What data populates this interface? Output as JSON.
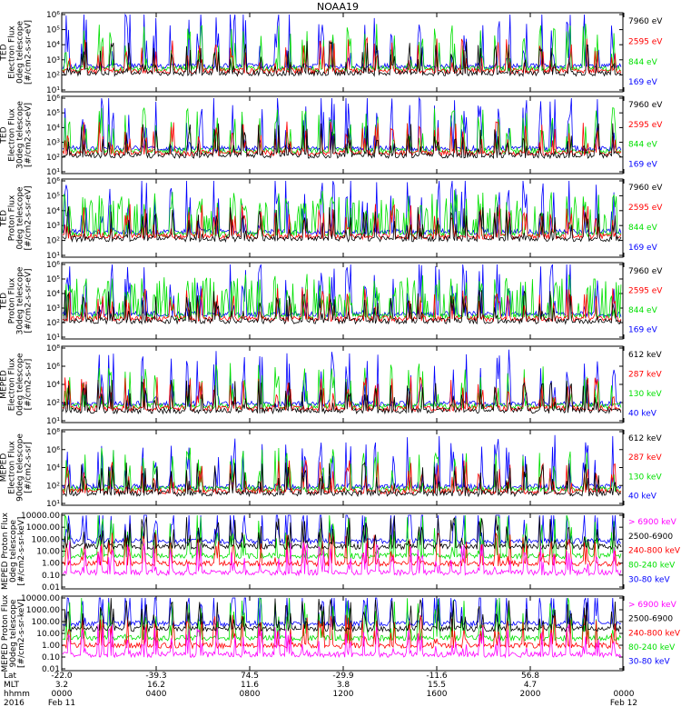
{
  "title": "NOAA19",
  "colors": {
    "black": "#000000",
    "red": "#ff0000",
    "green": "#00e000",
    "blue": "#0000ff",
    "magenta": "#ff00ff"
  },
  "chart_data": [
    {
      "type": "line",
      "scale": "log",
      "ylabel": [
        "TED",
        "Electron Flux",
        "0deg telescope",
        "[#/cm2-s-sr-eV]"
      ],
      "yticks": [
        "10¹",
        "10²",
        "10³",
        "10⁴",
        "10⁵",
        "10⁶"
      ],
      "legend": [
        {
          "name": "7960 eV",
          "color": "#000000"
        },
        {
          "name": "2595 eV",
          "color": "#ff0000"
        },
        {
          "name": "844 eV",
          "color": "#00e000"
        },
        {
          "name": "169 eV",
          "color": "#0000ff"
        }
      ]
    },
    {
      "type": "line",
      "scale": "log",
      "ylabel": [
        "TED",
        "Electron Flux",
        "30deg telescope",
        "[#/cm2-s-sr-eV]"
      ],
      "yticks": [
        "10¹",
        "10²",
        "10³",
        "10⁴",
        "10⁵",
        "10⁶"
      ],
      "legend": [
        {
          "name": "7960 eV",
          "color": "#000000"
        },
        {
          "name": "2595 eV",
          "color": "#ff0000"
        },
        {
          "name": "844 eV",
          "color": "#00e000"
        },
        {
          "name": "169 eV",
          "color": "#0000ff"
        }
      ]
    },
    {
      "type": "line",
      "scale": "log",
      "ylabel": [
        "TED",
        "Proton Flux",
        "0deg telescope",
        "[#/cm2-s-sr-eV]"
      ],
      "yticks": [
        "10¹",
        "10²",
        "10³",
        "10⁴",
        "10⁵",
        "10⁶"
      ],
      "legend": [
        {
          "name": "7960 eV",
          "color": "#000000"
        },
        {
          "name": "2595 eV",
          "color": "#ff0000"
        },
        {
          "name": "844 eV",
          "color": "#00e000"
        },
        {
          "name": "169 eV",
          "color": "#0000ff"
        }
      ]
    },
    {
      "type": "line",
      "scale": "log",
      "ylabel": [
        "TED",
        "Proton Flux",
        "30deg telescope",
        "[#/cm2-s-sr-eV]"
      ],
      "yticks": [
        "10¹",
        "10²",
        "10³",
        "10⁴",
        "10⁵",
        "10⁶"
      ],
      "legend": [
        {
          "name": "7960 eV",
          "color": "#000000"
        },
        {
          "name": "2595 eV",
          "color": "#ff0000"
        },
        {
          "name": "844 eV",
          "color": "#00e000"
        },
        {
          "name": "169 eV",
          "color": "#0000ff"
        }
      ]
    },
    {
      "type": "line",
      "scale": "log",
      "ylabel": [
        "MEPED",
        "Electron Flux",
        "0deg telescope",
        "[#/cm2-s-sr]"
      ],
      "yticks": [
        "10¹",
        "10²",
        "10⁴",
        "10⁶",
        "10⁸"
      ],
      "legend": [
        {
          "name": "612 keV",
          "color": "#000000"
        },
        {
          "name": "287 keV",
          "color": "#ff0000"
        },
        {
          "name": "130 keV",
          "color": "#00e000"
        },
        {
          "name": "40 keV",
          "color": "#0000ff"
        }
      ]
    },
    {
      "type": "line",
      "scale": "log",
      "ylabel": [
        "MEPED",
        "Electron Flux",
        "90deg telescope",
        "[#/cm2-s-sr]"
      ],
      "yticks": [
        "10¹",
        "10²",
        "10⁴",
        "10⁶",
        "10⁸"
      ],
      "legend": [
        {
          "name": "612 keV",
          "color": "#000000"
        },
        {
          "name": "287 keV",
          "color": "#ff0000"
        },
        {
          "name": "130 keV",
          "color": "#00e000"
        },
        {
          "name": "40 keV",
          "color": "#0000ff"
        }
      ]
    },
    {
      "type": "line",
      "scale": "log",
      "ylabel": [
        "MEPED Proton Flux",
        "0deg telescope",
        "[#/cm2-s-sr-keV]"
      ],
      "yticks": [
        "0.01",
        "0.10",
        "1.00",
        "10.00",
        "100.00",
        "1000.00",
        "10000.00"
      ],
      "legend": [
        {
          "name": "> 6900 keV",
          "color": "#ff00ff"
        },
        {
          "name": "2500-6900",
          "color": "#000000"
        },
        {
          "name": "240-800 keV",
          "color": "#ff0000"
        },
        {
          "name": "80-240 keV",
          "color": "#00e000"
        },
        {
          "name": "30-80 keV",
          "color": "#0000ff"
        }
      ]
    },
    {
      "type": "line",
      "scale": "log",
      "ylabel": [
        "MEPED Proton Flux",
        "90deg telescope",
        "[#/cm2-s-sr-keV]"
      ],
      "yticks": [
        "0.01",
        "0.10",
        "1.00",
        "10.00",
        "100.00",
        "1000.00",
        "10000.00"
      ],
      "legend": [
        {
          "name": "> 6900 keV",
          "color": "#ff00ff"
        },
        {
          "name": "2500-6900",
          "color": "#000000"
        },
        {
          "name": "240-800 keV",
          "color": "#ff0000"
        },
        {
          "name": "80-240 keV",
          "color": "#00e000"
        },
        {
          "name": "30-80 keV",
          "color": "#0000ff"
        }
      ]
    }
  ],
  "x_axis": {
    "row_labels": [
      "Lat",
      "MLT",
      "hhmm",
      "2016"
    ],
    "ticks": [
      {
        "lat": "-22.0",
        "mlt": "3.2",
        "hhmm": "0000",
        "date": "Feb 11"
      },
      {
        "lat": "-39.3",
        "mlt": "16.2",
        "hhmm": "0400",
        "date": ""
      },
      {
        "lat": "74.5",
        "mlt": "11.6",
        "hhmm": "0800",
        "date": ""
      },
      {
        "lat": "-29.9",
        "mlt": "3.8",
        "hhmm": "1200",
        "date": ""
      },
      {
        "lat": "-11.6",
        "mlt": "15.5",
        "hhmm": "1600",
        "date": ""
      },
      {
        "lat": "56.8",
        "mlt": "4.7",
        "hhmm": "2000",
        "date": ""
      },
      {
        "lat": "",
        "mlt": "",
        "hhmm": "0000",
        "date": "Feb 12"
      }
    ]
  }
}
